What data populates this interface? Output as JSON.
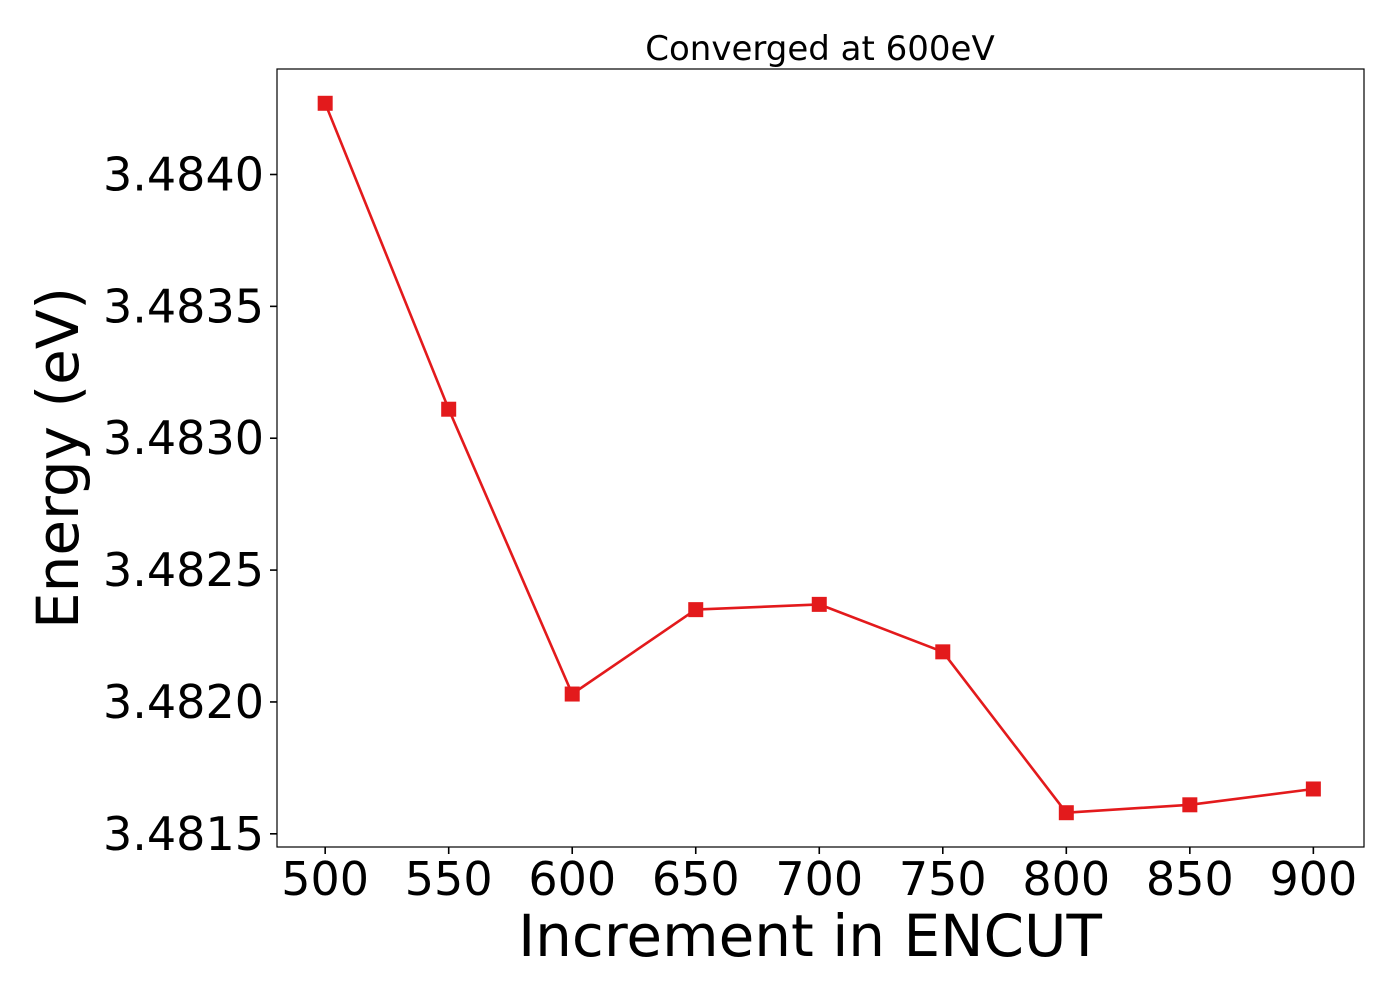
{
  "chart_data": {
    "type": "line",
    "title": "Converged at 600eV",
    "xlabel": "Increment in ENCUT",
    "ylabel": "Energy (eV)",
    "x": [
      500,
      550,
      600,
      650,
      700,
      750,
      800,
      850,
      900
    ],
    "series": [
      {
        "values": [
          3.48427,
          3.48311,
          3.48203,
          3.48235,
          3.48237,
          3.48219,
          3.48158,
          3.48161,
          3.48167
        ],
        "color": "#e31a1c",
        "marker": "square"
      }
    ],
    "xticks": [
      500,
      550,
      600,
      650,
      700,
      750,
      800,
      850,
      900
    ],
    "xtick_labels": [
      "500",
      "550",
      "600",
      "650",
      "700",
      "750",
      "800",
      "850",
      "900"
    ],
    "yticks": [
      3.4815,
      3.482,
      3.4825,
      3.483,
      3.4835,
      3.484
    ],
    "ytick_labels": [
      "3.4815",
      "3.4820",
      "3.4825",
      "3.4830",
      "3.4835",
      "3.4840"
    ],
    "xlim": [
      480.5,
      920.5
    ],
    "ylim": [
      3.48145,
      3.4844
    ],
    "grid": false,
    "legend": "none"
  }
}
